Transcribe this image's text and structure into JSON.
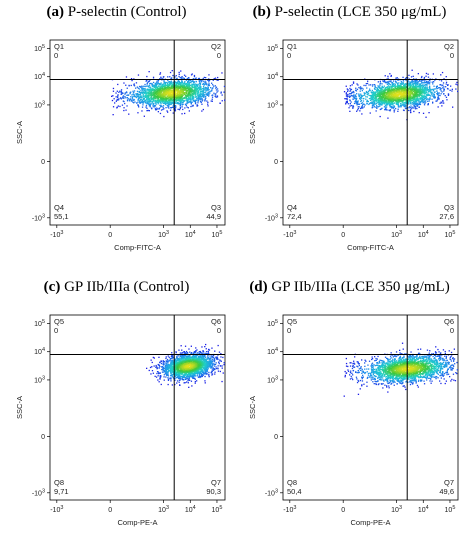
{
  "chart_data": [
    {
      "type": "scatter",
      "panel_letter": "(a)",
      "title": "P-selectin (Control)",
      "xlabel": "Comp-FITC-A",
      "ylabel": "SSC-A",
      "x_ticks": [
        "-10^3",
        "0",
        "10^3",
        "10^4",
        "10^5"
      ],
      "y_ticks": [
        "-10^3",
        "0",
        "10^3",
        "10^4",
        "10^5"
      ],
      "quadrants": [
        {
          "name": "Q1",
          "value": "0"
        },
        {
          "name": "Q2",
          "value": "0"
        },
        {
          "name": "Q3",
          "value": "44,9"
        },
        {
          "name": "Q4",
          "value": "55,1"
        }
      ],
      "gate": {
        "x": 2500,
        "y": 8000
      },
      "cloud": {
        "cx": 2000,
        "cy": 2800,
        "sx_decades": 0.8,
        "sy_decades": 0.25
      }
    },
    {
      "type": "scatter",
      "panel_letter": "(b)",
      "title": "P-selectin (LCE 350 μg/mL)",
      "xlabel": "Comp-FITC-A",
      "ylabel": "SSC-A",
      "x_ticks": [
        "-10^3",
        "0",
        "10^3",
        "10^4",
        "10^5"
      ],
      "y_ticks": [
        "-10^3",
        "0",
        "10^3",
        "10^4",
        "10^5"
      ],
      "quadrants": [
        {
          "name": "Q1",
          "value": "0"
        },
        {
          "name": "Q2",
          "value": "0"
        },
        {
          "name": "Q3",
          "value": "27,6"
        },
        {
          "name": "Q4",
          "value": "72,4"
        }
      ],
      "gate": {
        "x": 2500,
        "y": 8000
      },
      "cloud": {
        "cx": 1200,
        "cy": 2500,
        "sx_decades": 0.8,
        "sy_decades": 0.25
      }
    },
    {
      "type": "scatter",
      "panel_letter": "(c)",
      "title": "GP IIb/IIIa (Control)",
      "xlabel": "Comp-PE-A",
      "ylabel": "SSC-A",
      "x_ticks": [
        "-10^3",
        "0",
        "10^3",
        "10^4",
        "10^5"
      ],
      "y_ticks": [
        "-10^3",
        "0",
        "10^3",
        "10^4",
        "10^5"
      ],
      "quadrants": [
        {
          "name": "Q5",
          "value": "0"
        },
        {
          "name": "Q6",
          "value": "0"
        },
        {
          "name": "Q7",
          "value": "90,3"
        },
        {
          "name": "Q8",
          "value": "9,71"
        }
      ],
      "gate": {
        "x": 2500,
        "y": 8000
      },
      "cloud": {
        "cx": 8000,
        "cy": 3200,
        "sx_decades": 0.5,
        "sy_decades": 0.22
      }
    },
    {
      "type": "scatter",
      "panel_letter": "(d)",
      "title": "GP IIb/IIIa (LCE 350 μg/mL)",
      "xlabel": "Comp-PE-A",
      "ylabel": "SSC-A",
      "x_ticks": [
        "-10^3",
        "0",
        "10^3",
        "10^4",
        "10^5"
      ],
      "y_ticks": [
        "-10^3",
        "0",
        "10^3",
        "10^4",
        "10^5"
      ],
      "quadrants": [
        {
          "name": "Q5",
          "value": "0"
        },
        {
          "name": "Q6",
          "value": "0"
        },
        {
          "name": "Q7",
          "value": "49,6"
        },
        {
          "name": "Q8",
          "value": "50,4"
        }
      ],
      "gate": {
        "x": 2500,
        "y": 8000
      },
      "cloud": {
        "cx": 2500,
        "cy": 2600,
        "sx_decades": 0.85,
        "sy_decades": 0.25
      }
    }
  ],
  "colors": {
    "density_low": "#1a1ae6",
    "density_mid": "#1fd0c8",
    "density_high": "#e8e01a",
    "gate_line": "#000000",
    "axis": "#000000"
  }
}
